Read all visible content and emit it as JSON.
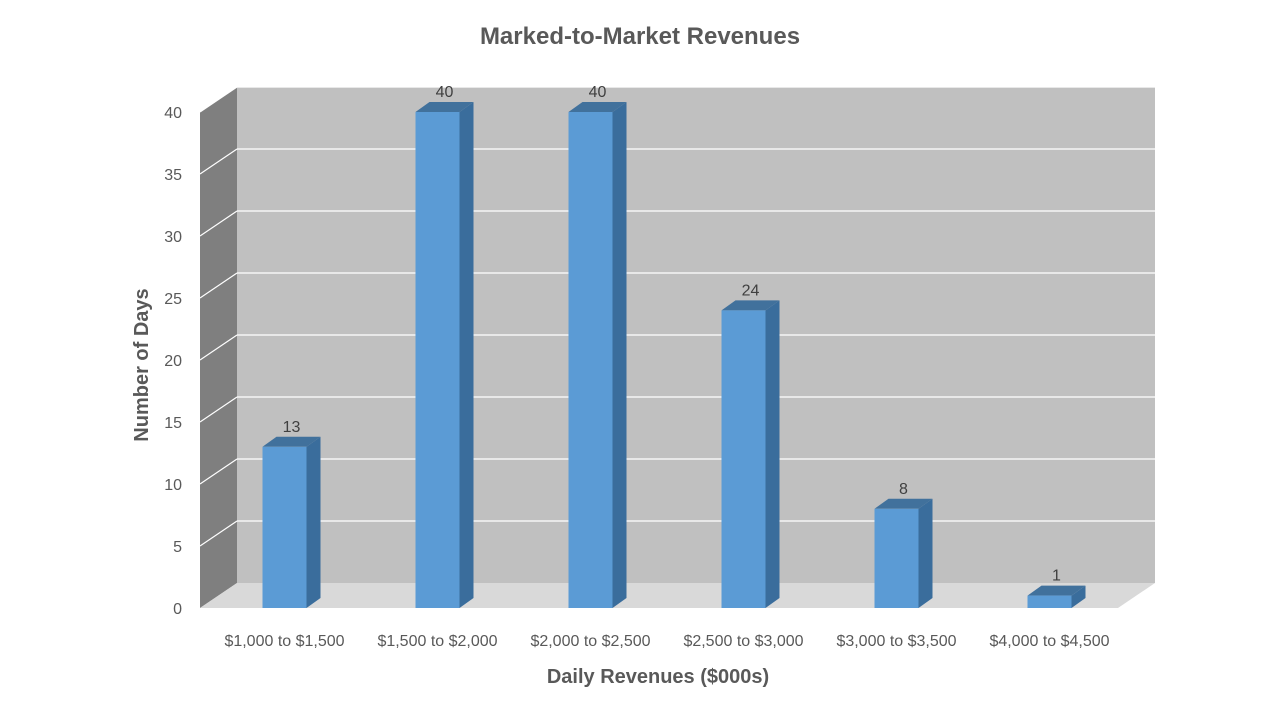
{
  "chart_data": {
    "type": "bar",
    "title": "Marked-to-Market Revenues",
    "xlabel": "Daily Revenues ($000s)",
    "ylabel": "Number of Days",
    "categories": [
      "$1,000 to $1,500",
      "$1,500 to $2,000",
      "$2,000 to $2,500",
      "$2,500 to $3,000",
      "$3,000 to $3,500",
      "$4,000 to $4,500"
    ],
    "values": [
      13,
      40,
      40,
      24,
      8,
      1
    ],
    "data_labels": [
      "13",
      "40",
      "40",
      "24",
      "8",
      "1"
    ],
    "ylim": [
      0,
      40
    ],
    "yticks": [
      "0",
      "5",
      "10",
      "15",
      "20",
      "25",
      "30",
      "35",
      "40"
    ],
    "grid": true,
    "legend": "none",
    "style": "3d-column"
  },
  "colors": {
    "bar_front": "#5b9bd5",
    "bar_side": "#3a6d9c",
    "bar_top": "#41719c",
    "back_wall": "#c0c0c0",
    "side_wall": "#7f7f7f",
    "floor": "#d9d9d9",
    "gridline": "#ffffff",
    "text": "#595959"
  }
}
